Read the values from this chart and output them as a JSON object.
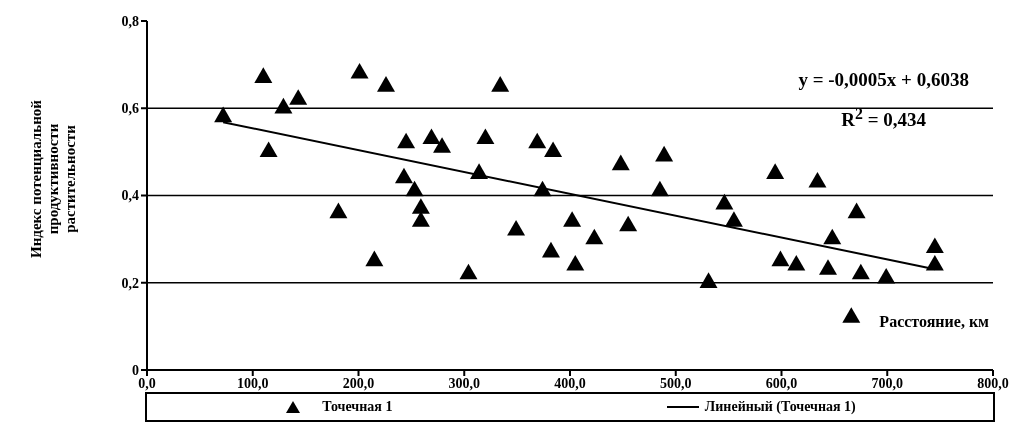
{
  "chart_data": {
    "type": "scatter",
    "xlabel": "Расстояние, км",
    "ylabel": "Индекс потенциальной продуктивности растительности",
    "annotations": [
      "y = -0,0005x + 0,6038",
      "R$^{2}$ = 0,434"
    ],
    "xlim": [
      0,
      800
    ],
    "xticks": [
      {
        "value": 0,
        "label": "0,0"
      },
      {
        "value": 100,
        "label": "100,0"
      },
      {
        "value": 200,
        "label": "200,0"
      },
      {
        "value": 300,
        "label": "300,0"
      },
      {
        "value": 400,
        "label": "400,0"
      },
      {
        "value": 500,
        "label": "500,0"
      },
      {
        "value": 600,
        "label": "600,0"
      },
      {
        "value": 700,
        "label": "700,0"
      },
      {
        "value": 800,
        "label": "800,0"
      }
    ],
    "ylim": [
      0,
      0.8
    ],
    "yticks": [
      0,
      {
        "value": 0.2,
        "label": "0,2"
      },
      {
        "value": 0.4,
        "label": "0,4"
      },
      {
        "value": 0.6,
        "label": "0,6"
      },
      {
        "value": 0.8,
        "label": "0,8"
      }
    ],
    "grid": "y",
    "legend": "bottom",
    "series": [
      {
        "name": "Точечная 1",
        "color": "#000000",
        "marker": "triangle",
        "x": [
          72,
          110,
          115,
          129,
          143,
          181,
          201,
          215,
          226,
          245,
          243,
          253,
          259,
          259,
          269,
          279,
          304,
          314,
          320,
          334,
          349,
          369,
          374,
          382,
          384,
          402,
          405,
          423,
          448,
          455,
          485,
          489,
          531,
          546,
          555,
          594,
          599,
          614,
          634,
          644,
          648,
          666,
          671,
          675,
          699,
          745,
          745
        ],
        "values": [
          0.58,
          0.67,
          0.5,
          0.6,
          0.62,
          0.36,
          0.68,
          0.25,
          0.65,
          0.52,
          0.44,
          0.41,
          0.37,
          0.34,
          0.53,
          0.51,
          0.22,
          0.45,
          0.53,
          0.65,
          0.32,
          0.52,
          0.41,
          0.27,
          0.5,
          0.34,
          0.24,
          0.3,
          0.47,
          0.33,
          0.41,
          0.49,
          0.2,
          0.38,
          0.34,
          0.45,
          0.25,
          0.24,
          0.43,
          0.23,
          0.3,
          0.12,
          0.36,
          0.22,
          0.21,
          0.28,
          0.24
        ]
      },
      {
        "name": "Линейный (Точечная 1)",
        "type": "line",
        "marker": "none",
        "color": "#000000",
        "x": [
          72,
          745
        ],
        "values": [
          0.568,
          0.231
        ]
      }
    ]
  }
}
